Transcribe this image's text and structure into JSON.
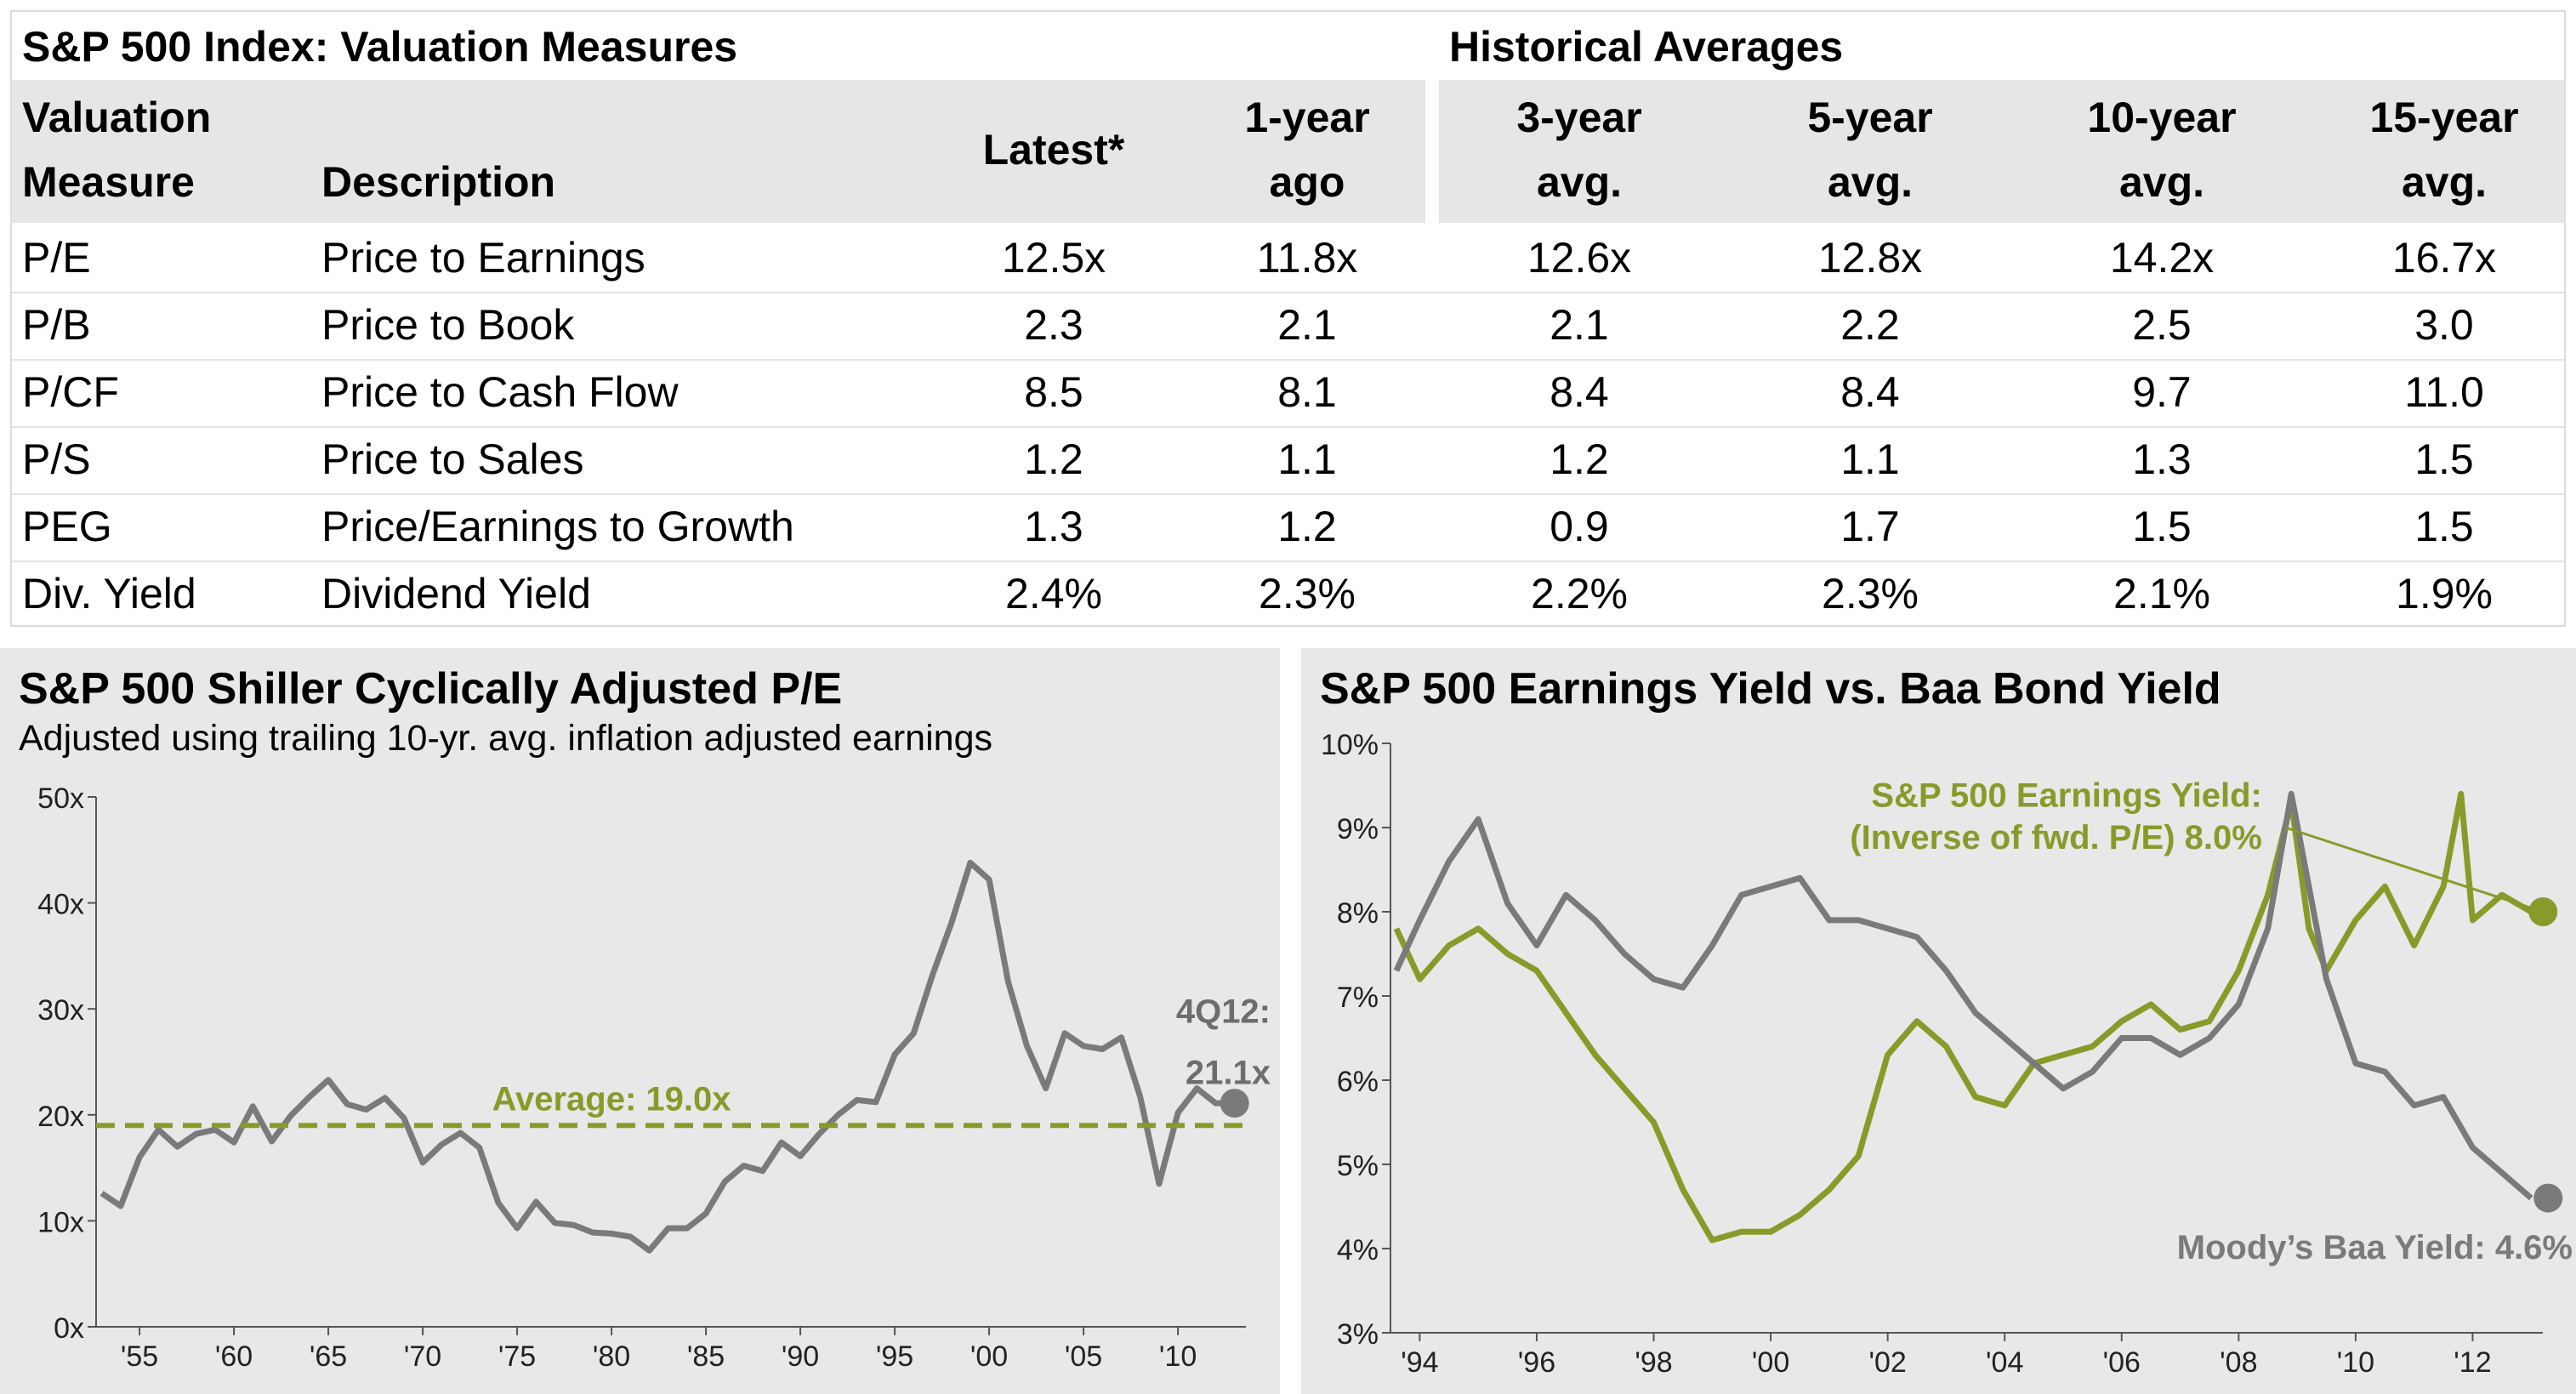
{
  "table": {
    "title": "S&P 500 Index: Valuation Measures",
    "hist_title": "Historical Averages",
    "headers": {
      "measure_l1": "Valuation",
      "measure_l2": "Measure",
      "description": "Description",
      "latest": "Latest*",
      "year_ago_l1": "1-year",
      "year_ago_l2": "ago",
      "avg3_l1": "3-year",
      "avg3_l2": "avg.",
      "avg5_l1": "5-year",
      "avg5_l2": "avg.",
      "avg10_l1": "10-year",
      "avg10_l2": "avg.",
      "avg15_l1": "15-year",
      "avg15_l2": "avg."
    },
    "rows": [
      {
        "measure": "P/E",
        "description": "Price to Earnings",
        "latest": "12.5x",
        "year_ago": "11.8x",
        "avg3": "12.6x",
        "avg5": "12.8x",
        "avg10": "14.2x",
        "avg15": "16.7x"
      },
      {
        "measure": "P/B",
        "description": "Price to Book",
        "latest": "2.3",
        "year_ago": "2.1",
        "avg3": "2.1",
        "avg5": "2.2",
        "avg10": "2.5",
        "avg15": "3.0"
      },
      {
        "measure": "P/CF",
        "description": "Price to Cash Flow",
        "latest": "8.5",
        "year_ago": "8.1",
        "avg3": "8.4",
        "avg5": "8.4",
        "avg10": "9.7",
        "avg15": "11.0"
      },
      {
        "measure": "P/S",
        "description": "Price to Sales",
        "latest": "1.2",
        "year_ago": "1.1",
        "avg3": "1.2",
        "avg5": "1.1",
        "avg10": "1.3",
        "avg15": "1.5"
      },
      {
        "measure": "PEG",
        "description": "Price/Earnings to Growth",
        "latest": "1.3",
        "year_ago": "1.2",
        "avg3": "0.9",
        "avg5": "1.7",
        "avg10": "1.5",
        "avg15": "1.5"
      },
      {
        "measure": "Div. Yield",
        "description": "Dividend Yield",
        "latest": "2.4%",
        "year_ago": "2.3%",
        "avg3": "2.2%",
        "avg5": "2.3%",
        "avg10": "2.1%",
        "avg15": "1.9%"
      }
    ]
  },
  "chart_data": [
    {
      "type": "line",
      "title": "S&P 500 Shiller Cyclically Adjusted P/E",
      "subtitle": "Adjusted using trailing 10-yr. avg. inflation adjusted earnings",
      "xlabel": "",
      "ylabel": "",
      "xlim": [
        1952.7,
        2013.6
      ],
      "ylim": [
        0,
        50
      ],
      "yticks": [
        0,
        10,
        20,
        30,
        40,
        50
      ],
      "ytick_labels": [
        "0x",
        "10x",
        "20x",
        "30x",
        "40x",
        "50x"
      ],
      "xticks": [
        1955,
        1960,
        1965,
        1970,
        1975,
        1980,
        1985,
        1990,
        1995,
        2000,
        2005,
        2010
      ],
      "xtick_labels": [
        "'55",
        "'60",
        "'65",
        "'70",
        "'75",
        "'80",
        "'85",
        "'90",
        "'95",
        "'00",
        "'05",
        "'10"
      ],
      "series": [
        {
          "color": "#7a7a7a",
          "x": [
            1953,
            1954,
            1955,
            1956,
            1957,
            1958,
            1959,
            1960,
            1961,
            1962,
            1963,
            1964,
            1965,
            1966,
            1967,
            1968,
            1969,
            1970,
            1971,
            1972,
            1973,
            1974,
            1975,
            1976,
            1977,
            1978,
            1979,
            1980,
            1981,
            1982,
            1983,
            1984,
            1985,
            1986,
            1987,
            1988,
            1989,
            1990,
            1991,
            1992,
            1993,
            1994,
            1995,
            1996,
            1997,
            1998,
            1999,
            2000,
            2001,
            2002,
            2003,
            2004,
            2005,
            2006,
            2007,
            2008,
            2009,
            2010,
            2011,
            2012,
            2013
          ],
          "y": [
            12.6,
            11.4,
            16,
            18.6,
            17,
            18.2,
            18.6,
            17.4,
            20.8,
            17.5,
            19.9,
            21.7,
            23.3,
            21,
            20.5,
            21.6,
            19.7,
            15.5,
            17.2,
            18.3,
            16.9,
            11.7,
            9.3,
            11.8,
            9.8,
            9.6,
            8.9,
            8.8,
            8.5,
            7.2,
            9.3,
            9.3,
            10.7,
            13.7,
            15.2,
            14.7,
            17.4,
            16.1,
            18.2,
            20,
            21.4,
            21.2,
            25.7,
            27.7,
            33.2,
            38.1,
            43.8,
            42.2,
            32.6,
            26.5,
            22.5,
            27.7,
            26.5,
            26.2,
            27.3,
            21.7,
            13.5,
            20.2,
            22.5,
            21.1,
            21.1
          ]
        }
      ],
      "average": {
        "value": 19.0,
        "label": "Average: 19.0x",
        "color": "#8a9a2a"
      },
      "end_annotation": {
        "label_line1": "4Q12:",
        "label_line2": "21.1x",
        "value": 21.1
      }
    },
    {
      "type": "line",
      "title": "S&P 500 Earnings Yield vs. Baa Bond Yield",
      "xlabel": "",
      "ylabel": "",
      "xlim": [
        1993.5,
        2013.2
      ],
      "ylim": [
        3,
        10
      ],
      "yticks": [
        3,
        4,
        5,
        6,
        7,
        8,
        9,
        10
      ],
      "ytick_labels": [
        "3%",
        "4%",
        "5%",
        "6%",
        "7%",
        "8%",
        "9%",
        "10%"
      ],
      "xticks": [
        1994,
        1996,
        1998,
        2000,
        2002,
        2004,
        2006,
        2008,
        2010,
        2012
      ],
      "xtick_labels": [
        "'94",
        "'96",
        "'98",
        "'00",
        "'02",
        "'04",
        "'06",
        "'08",
        "'10",
        "'12"
      ],
      "series": [
        {
          "name": "S&P 500 Earnings Yield",
          "color": "#8a9a2a",
          "x": [
            1993.6,
            1994,
            1994.5,
            1995,
            1995.5,
            1996,
            1996.5,
            1997,
            1997.5,
            1998,
            1998.5,
            1999,
            1999.5,
            2000,
            2000.5,
            2001,
            2001.5,
            2002,
            2002.5,
            2003,
            2003.5,
            2004,
            2004.5,
            2005,
            2005.5,
            2006,
            2006.5,
            2007,
            2007.5,
            2008,
            2008.5,
            2008.9,
            2009.2,
            2009.5,
            2010,
            2010.5,
            2011,
            2011.5,
            2011.8,
            2012,
            2012.5,
            2013
          ],
          "y": [
            7.8,
            7.2,
            7.6,
            7.8,
            7.5,
            7.3,
            6.8,
            6.3,
            5.9,
            5.5,
            4.7,
            4.1,
            4.2,
            4.2,
            4.4,
            4.7,
            5.1,
            6.3,
            6.7,
            6.4,
            5.8,
            5.7,
            6.2,
            6.3,
            6.4,
            6.7,
            6.9,
            6.6,
            6.7,
            7.3,
            8.2,
            9.3,
            7.8,
            7.3,
            7.9,
            8.3,
            7.6,
            8.3,
            9.4,
            7.9,
            8.2,
            8.0
          ]
        },
        {
          "name": "Moody's Baa Yield",
          "color": "#7a7a7a",
          "x": [
            1993.6,
            1994,
            1994.5,
            1995,
            1995.5,
            1996,
            1996.5,
            1997,
            1997.5,
            1998,
            1998.5,
            1999,
            1999.5,
            2000,
            2000.5,
            2001,
            2001.5,
            2002,
            2002.5,
            2003,
            2003.5,
            2004,
            2004.5,
            2005,
            2005.5,
            2006,
            2006.5,
            2007,
            2007.5,
            2008,
            2008.5,
            2008.9,
            2009.2,
            2009.5,
            2010,
            2010.5,
            2011,
            2011.5,
            2012,
            2012.5,
            2013
          ],
          "y": [
            7.3,
            7.9,
            8.6,
            9.1,
            8.1,
            7.6,
            8.2,
            7.9,
            7.5,
            7.2,
            7.1,
            7.6,
            8.2,
            8.3,
            8.4,
            7.9,
            7.9,
            7.8,
            7.7,
            7.3,
            6.8,
            6.5,
            6.2,
            5.9,
            6.1,
            6.5,
            6.5,
            6.3,
            6.5,
            6.9,
            7.8,
            9.4,
            8.3,
            7.2,
            6.2,
            6.1,
            5.7,
            5.8,
            5.2,
            4.9,
            4.6
          ]
        }
      ],
      "ey_label_line1": "S&P 500 Earnings Yield:",
      "ey_label_line2": "(Inverse of fwd. P/E) 8.0%",
      "baa_label": "Moody’s Baa Yield: 4.6%",
      "ey_end": 8.0,
      "baa_end": 4.6
    }
  ]
}
